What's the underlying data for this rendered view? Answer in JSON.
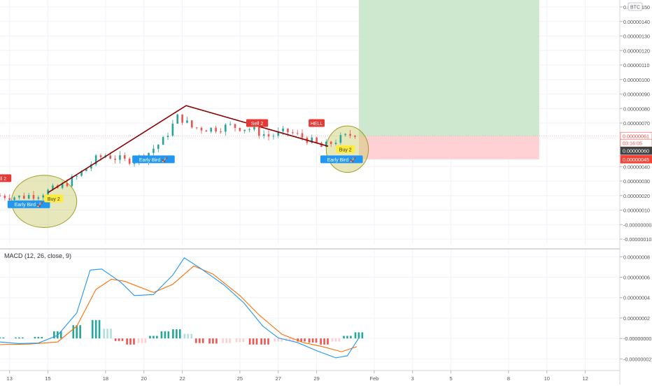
{
  "currency_badge": "BTC",
  "chart_data": [
    {
      "type": "candlestick",
      "title": "",
      "price_axis": {
        "ticks": [
          "0.00000150",
          "0.00000140",
          "0.00000130",
          "0.00000120",
          "0.00000110",
          "0.00000100",
          "0.00000090",
          "0.00000080",
          "0.00000070",
          "0.00000061",
          "0.00000060",
          "0.00000045",
          "0.00000040",
          "0.00000030",
          "0.00000020",
          "0.00000010",
          "-0.00000000",
          "-0.00000010"
        ],
        "min": -1e-07,
        "max": 1.5e-06
      },
      "time_axis": {
        "ticks": [
          {
            "label": "13",
            "day": 13
          },
          {
            "label": "15",
            "day": 15
          },
          {
            "label": "18",
            "day": 18
          },
          {
            "label": "20",
            "day": 20
          },
          {
            "label": "22",
            "day": 22
          },
          {
            "label": "25",
            "day": 25
          },
          {
            "label": "27",
            "day": 27
          },
          {
            "label": "29",
            "day": 29
          },
          {
            "label": "Feb",
            "day": 32
          },
          {
            "label": "3",
            "day": 34
          },
          {
            "label": "5",
            "day": 36
          },
          {
            "label": "8",
            "day": 39
          },
          {
            "label": "10",
            "day": 41
          },
          {
            "label": "12",
            "day": 43
          }
        ],
        "min_day": 12.5,
        "max_day": 44.8
      },
      "price_labels": {
        "entry": "0.00000061",
        "countdown": "03:16:05",
        "current": "0.00000060",
        "stop": "0.00000045"
      },
      "price_series": [
        {
          "day": 12.5,
          "close": 2e-07
        },
        {
          "day": 13.5,
          "close": 1.9e-07
        },
        {
          "day": 14.5,
          "close": 2.1e-07
        },
        {
          "day": 15.5,
          "close": 2.5e-07
        },
        {
          "day": 16.5,
          "close": 3.3e-07
        },
        {
          "day": 17.5,
          "close": 4.5e-07
        },
        {
          "day": 18,
          "close": 4.8e-07
        },
        {
          "day": 19,
          "close": 4.4e-07
        },
        {
          "day": 20,
          "close": 4.7e-07
        },
        {
          "day": 21,
          "close": 5.8e-07
        },
        {
          "day": 21.8,
          "close": 7.5e-07
        },
        {
          "day": 22.5,
          "close": 6.7e-07
        },
        {
          "day": 23.5,
          "close": 6.6e-07
        },
        {
          "day": 24.5,
          "close": 6.8e-07
        },
        {
          "day": 25.5,
          "close": 6.6e-07
        },
        {
          "day": 26.5,
          "close": 6.1e-07
        },
        {
          "day": 27.5,
          "close": 6.4e-07
        },
        {
          "day": 28.5,
          "close": 5.9e-07
        },
        {
          "day": 29.3,
          "close": 5.3e-07
        },
        {
          "day": 30,
          "close": 5.8e-07
        },
        {
          "day": 31,
          "close": 6.3e-07
        }
      ],
      "trend_lines": [
        {
          "points": [
            [
              15,
              2.2e-07
            ],
            [
              22.2,
              8.2e-07
            ],
            [
              29.6,
              5.4e-07
            ]
          ]
        }
      ],
      "zones": {
        "profit": {
          "from_day": 31.2,
          "to_day": 40.6,
          "low": 6.1e-07,
          "high": 1.6e-06
        },
        "loss": {
          "from_day": 31.2,
          "to_day": 40.6,
          "low": 4.5e-07,
          "high": 6.1e-07
        }
      },
      "signals": [
        {
          "text": "ell 2",
          "kind": "sell",
          "day": 12.6,
          "price": 3.2e-07
        },
        {
          "text": "Early Bird 🚀",
          "kind": "early",
          "day": 14.0,
          "price": 1.4e-07
        },
        {
          "text": "Buy 2",
          "kind": "buy",
          "day": 15.3,
          "price": 1.8e-07
        },
        {
          "text": "Early Bird 🚀",
          "kind": "early",
          "day": 20.5,
          "price": 4.5e-07
        },
        {
          "text": "Sell 2",
          "kind": "sell",
          "day": 25.9,
          "price": 7e-07
        },
        {
          "text": "HELL",
          "kind": "sell",
          "day": 29.0,
          "price": 7e-07
        },
        {
          "text": "Buy 2",
          "kind": "buy",
          "day": 30.5,
          "price": 5.2e-07
        },
        {
          "text": "Early Bird 🚀",
          "kind": "early",
          "day": 30.3,
          "price": 4.5e-07
        }
      ],
      "highlights": [
        {
          "center_day": 14.8,
          "center_price": 1.6e-07,
          "rx_days": 1.7,
          "ry_price": 1.8e-07
        },
        {
          "center_day": 30.6,
          "center_price": 5.2e-07,
          "rx_days": 1.1,
          "ry_price": 1.6e-07
        }
      ]
    },
    {
      "type": "macd",
      "title": "MACD (12, 26, close, 9)",
      "axis": {
        "ticks": [
          "0.00000008",
          "0.00000006",
          "0.00000004",
          "0.00000002",
          "-0.00000000",
          "-0.00000002"
        ],
        "min": -2.8e-08,
        "max": 8.5e-08
      },
      "macd_line": [
        {
          "day": 12.5,
          "value": -3.5e-09
        },
        {
          "day": 13.5,
          "value": -5e-09
        },
        {
          "day": 14.5,
          "value": -4.5e-09
        },
        {
          "day": 15.5,
          "value": 3e-09
        },
        {
          "day": 16.5,
          "value": 2.5e-08
        },
        {
          "day": 17.2,
          "value": 6.7e-08
        },
        {
          "day": 17.8,
          "value": 6.8e-08
        },
        {
          "day": 18.8,
          "value": 5.5e-08
        },
        {
          "day": 19.5,
          "value": 4.2e-08
        },
        {
          "day": 20.5,
          "value": 4.3e-08
        },
        {
          "day": 21.5,
          "value": 6.2e-08
        },
        {
          "day": 22.1,
          "value": 7.9e-08
        },
        {
          "day": 23.0,
          "value": 6.8e-08
        },
        {
          "day": 24.2,
          "value": 5.2e-08
        },
        {
          "day": 25.2,
          "value": 3.5e-08
        },
        {
          "day": 26.2,
          "value": 1.2e-08
        },
        {
          "day": 27.0,
          "value": 5e-10
        },
        {
          "day": 28.0,
          "value": -4e-09
        },
        {
          "day": 29.0,
          "value": -1.2e-08
        },
        {
          "day": 30.0,
          "value": -1.9e-08
        },
        {
          "day": 30.6,
          "value": -1.7e-08
        },
        {
          "day": 31.2,
          "value": 5e-10
        }
      ],
      "signal_line": [
        {
          "day": 12.5,
          "value": -6e-09
        },
        {
          "day": 14.0,
          "value": -5.5e-09
        },
        {
          "day": 15.5,
          "value": -3.5e-09
        },
        {
          "day": 16.5,
          "value": 1.2e-08
        },
        {
          "day": 17.5,
          "value": 4.8e-08
        },
        {
          "day": 18.3,
          "value": 5.8e-08
        },
        {
          "day": 19.0,
          "value": 5.6e-08
        },
        {
          "day": 20.5,
          "value": 4.5e-08
        },
        {
          "day": 21.5,
          "value": 5.3e-08
        },
        {
          "day": 22.6,
          "value": 7.1e-08
        },
        {
          "day": 23.6,
          "value": 6.3e-08
        },
        {
          "day": 25.0,
          "value": 4.2e-08
        },
        {
          "day": 26.0,
          "value": 2.3e-08
        },
        {
          "day": 27.2,
          "value": 4e-09
        },
        {
          "day": 28.3,
          "value": -4e-09
        },
        {
          "day": 29.3,
          "value": -8e-09
        },
        {
          "day": 30.3,
          "value": -1.3e-08
        },
        {
          "day": 31.1,
          "value": -8e-09
        }
      ],
      "histogram": [
        {
          "day": 12.5,
          "value": 1e-09
        },
        {
          "day": 13.5,
          "value": 1e-09
        },
        {
          "day": 14.5,
          "value": 1.5e-09
        },
        {
          "day": 15.5,
          "value": 7e-09
        },
        {
          "day": 16.5,
          "value": 1.3e-08
        },
        {
          "day": 17.5,
          "value": 1.8e-08
        },
        {
          "day": 18.1,
          "value": 9.5e-09
        },
        {
          "day": 18.7,
          "value": -2.5e-09
        },
        {
          "day": 19.3,
          "value": -6e-09
        },
        {
          "day": 19.9,
          "value": -4.5e-09
        },
        {
          "day": 20.5,
          "value": 2.5e-09
        },
        {
          "day": 21.1,
          "value": 7e-09
        },
        {
          "day": 21.7,
          "value": 9e-09
        },
        {
          "day": 22.3,
          "value": 4.5e-09
        },
        {
          "day": 22.9,
          "value": -4.5e-09
        },
        {
          "day": 23.6,
          "value": -5e-09
        },
        {
          "day": 24.3,
          "value": -4.5e-09
        },
        {
          "day": 25.0,
          "value": -3.5e-09
        },
        {
          "day": 25.7,
          "value": -6e-09
        },
        {
          "day": 26.3,
          "value": -6e-09
        },
        {
          "day": 27.0,
          "value": -3e-09
        },
        {
          "day": 27.6,
          "value": -2.5e-09
        },
        {
          "day": 28.2,
          "value": -3e-09
        },
        {
          "day": 28.8,
          "value": -4e-09
        },
        {
          "day": 29.4,
          "value": -6e-09
        },
        {
          "day": 30.0,
          "value": -3e-09
        },
        {
          "day": 30.6,
          "value": 2.5e-09
        },
        {
          "day": 31.2,
          "value": 6e-09
        }
      ],
      "colors": {
        "macd": "#2196f3",
        "signal": "#ff6d00",
        "hist_up_strong": "#26a69a",
        "hist_up_weak": "#b2dfdb",
        "hist_down_strong": "#ef5350",
        "hist_down_weak": "#ffcdd2"
      }
    }
  ],
  "colors": {
    "up": "#26a69a",
    "down": "#ef5350",
    "trend": "#8b0000",
    "profit_zone": "#c8e6c9",
    "loss_zone": "#ffcdd2",
    "grid": "#f0f3fa",
    "axis_text": "#555555",
    "early_label": "#2196f3",
    "buy_label": "#ffeb3b",
    "sell_label": "#e53935",
    "highlight_fill": "#c9c96a",
    "highlight_stroke": "#9e9d24"
  }
}
